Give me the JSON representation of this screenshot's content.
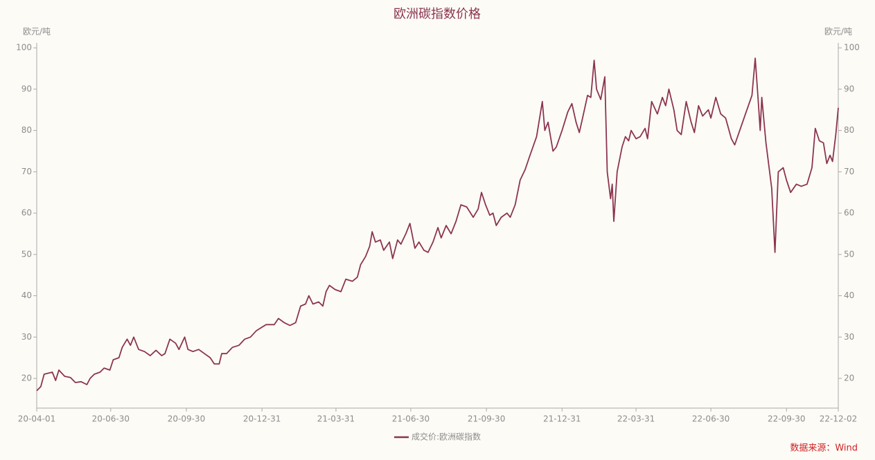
{
  "chart_data": {
    "type": "line",
    "title": "欧洲碳指数价格",
    "ylabel": "欧元/吨",
    "y2label": "欧元/吨",
    "source": "数据来源：Wind",
    "xlim": [
      "2020-04-01",
      "2022-12-02"
    ],
    "xticks": [
      {
        "value": "2020-04-01",
        "label": "20-04-01"
      },
      {
        "value": "2020-06-30",
        "label": "20-06-30"
      },
      {
        "value": "2020-09-30",
        "label": "20-09-30"
      },
      {
        "value": "2020-12-31",
        "label": "20-12-31"
      },
      {
        "value": "2021-03-31",
        "label": "21-03-31"
      },
      {
        "value": "2021-06-30",
        "label": "21-06-30"
      },
      {
        "value": "2021-09-30",
        "label": "21-09-30"
      },
      {
        "value": "2021-12-31",
        "label": "21-12-31"
      },
      {
        "value": "2022-03-31",
        "label": "22-03-31"
      },
      {
        "value": "2022-06-30",
        "label": "22-06-30"
      },
      {
        "value": "2022-09-30",
        "label": "22-09-30"
      },
      {
        "value": "2022-12-02",
        "label": "22-12-02"
      }
    ],
    "ylim": [
      12.8,
      101.2
    ],
    "yticks": [
      20,
      30,
      40,
      50,
      60,
      70,
      80,
      90,
      100
    ],
    "y2lim": [
      12.8,
      101.2
    ],
    "y2ticks": [
      20,
      30,
      40,
      50,
      60,
      70,
      80,
      90,
      100
    ],
    "x": [
      "2020-04-01",
      "2020-04-06",
      "2020-04-10",
      "2020-04-20",
      "2020-04-24",
      "2020-04-28",
      "2020-05-05",
      "2020-05-12",
      "2020-05-18",
      "2020-05-25",
      "2020-06-01",
      "2020-06-05",
      "2020-06-10",
      "2020-06-17",
      "2020-06-22",
      "2020-06-29",
      "2020-07-03",
      "2020-07-10",
      "2020-07-14",
      "2020-07-20",
      "2020-07-24",
      "2020-07-28",
      "2020-08-03",
      "2020-08-10",
      "2020-08-17",
      "2020-08-24",
      "2020-08-31",
      "2020-09-04",
      "2020-09-10",
      "2020-09-17",
      "2020-09-21",
      "2020-09-28",
      "2020-10-02",
      "2020-10-08",
      "2020-10-15",
      "2020-10-22",
      "2020-10-29",
      "2020-11-03",
      "2020-11-09",
      "2020-11-12",
      "2020-11-18",
      "2020-11-25",
      "2020-12-03",
      "2020-12-10",
      "2020-12-17",
      "2020-12-24",
      "2021-01-05",
      "2021-01-15",
      "2021-01-20",
      "2021-01-27",
      "2021-02-03",
      "2021-02-10",
      "2021-02-16",
      "2021-02-22",
      "2021-02-26",
      "2021-03-03",
      "2021-03-10",
      "2021-03-15",
      "2021-03-19",
      "2021-03-23",
      "2021-03-30",
      "2021-04-06",
      "2021-04-12",
      "2021-04-20",
      "2021-04-26",
      "2021-04-30",
      "2021-05-06",
      "2021-05-11",
      "2021-05-14",
      "2021-05-18",
      "2021-05-24",
      "2021-05-28",
      "2021-06-04",
      "2021-06-08",
      "2021-06-14",
      "2021-06-18",
      "2021-06-24",
      "2021-06-29",
      "2021-07-05",
      "2021-07-10",
      "2021-07-16",
      "2021-07-21",
      "2021-07-27",
      "2021-08-02",
      "2021-08-06",
      "2021-08-12",
      "2021-08-18",
      "2021-08-24",
      "2021-08-30",
      "2021-09-06",
      "2021-09-14",
      "2021-09-20",
      "2021-09-24",
      "2021-09-29",
      "2021-10-04",
      "2021-10-08",
      "2021-10-12",
      "2021-10-18",
      "2021-10-25",
      "2021-10-29",
      "2021-11-04",
      "2021-11-10",
      "2021-11-16",
      "2021-11-22",
      "2021-11-30",
      "2021-12-07",
      "2021-12-10",
      "2021-12-14",
      "2021-12-20",
      "2021-12-24",
      "2021-12-31",
      "2022-01-07",
      "2022-01-12",
      "2022-01-17",
      "2022-01-21",
      "2022-01-25",
      "2022-01-31",
      "2022-02-04",
      "2022-02-08",
      "2022-02-11",
      "2022-02-16",
      "2022-02-21",
      "2022-02-24",
      "2022-02-28",
      "2022-03-02",
      "2022-03-04",
      "2022-03-08",
      "2022-03-14",
      "2022-03-18",
      "2022-03-22",
      "2022-03-25",
      "2022-03-31",
      "2022-04-05",
      "2022-04-11",
      "2022-04-14",
      "2022-04-19",
      "2022-04-26",
      "2022-05-02",
      "2022-05-06",
      "2022-05-10",
      "2022-05-16",
      "2022-05-20",
      "2022-05-25",
      "2022-05-31",
      "2022-06-06",
      "2022-06-10",
      "2022-06-15",
      "2022-06-20",
      "2022-06-27",
      "2022-06-30",
      "2022-07-06",
      "2022-07-12",
      "2022-07-18",
      "2022-07-25",
      "2022-07-29",
      "2022-08-05",
      "2022-08-12",
      "2022-08-19",
      "2022-08-23",
      "2022-08-26",
      "2022-08-29",
      "2022-08-31",
      "2022-09-05",
      "2022-09-12",
      "2022-09-16",
      "2022-09-20",
      "2022-09-26",
      "2022-09-30",
      "2022-10-05",
      "2022-10-12",
      "2022-10-18",
      "2022-10-25",
      "2022-10-31",
      "2022-11-04",
      "2022-11-09",
      "2022-11-14",
      "2022-11-18",
      "2022-11-22",
      "2022-11-25",
      "2022-11-29",
      "2022-12-02"
    ],
    "series": [
      {
        "name": "成交价:欧洲碳指数",
        "color": "#8b3450",
        "values": [
          17,
          18,
          21,
          21.5,
          19.5,
          22,
          20.5,
          20.2,
          19,
          19.2,
          18.5,
          20,
          21,
          21.5,
          22.5,
          22,
          24.5,
          25,
          27.5,
          29.5,
          28,
          30,
          27,
          26.5,
          25.5,
          26.8,
          25.5,
          26,
          29.5,
          28.5,
          27,
          30,
          27,
          26.5,
          27,
          26,
          25,
          23.5,
          23.5,
          26,
          26,
          27.5,
          28,
          29.5,
          30,
          31.5,
          33,
          33,
          34.5,
          33.5,
          32.8,
          33.5,
          37.5,
          38,
          40,
          38,
          38.5,
          37.5,
          41,
          42.5,
          41.5,
          41,
          44,
          43.5,
          44.5,
          47.5,
          49.5,
          52,
          55.5,
          53,
          53.5,
          51,
          53,
          49,
          53.5,
          52.5,
          55,
          57.5,
          51.5,
          53,
          51,
          50.5,
          53,
          56.5,
          54,
          57,
          55,
          58,
          62,
          61.5,
          59,
          61,
          65,
          62,
          59.5,
          60,
          57,
          59,
          60,
          59,
          62,
          68,
          70.5,
          74,
          78.5,
          87,
          80,
          82,
          75,
          76,
          80,
          84.5,
          86.5,
          82,
          79.5,
          83,
          88.5,
          88,
          97,
          90,
          87.5,
          93,
          70,
          63.5,
          67,
          58,
          70,
          76,
          78.5,
          77.5,
          80,
          78,
          78.5,
          80.5,
          78,
          87,
          84,
          88,
          86,
          90,
          85,
          80,
          79,
          87,
          82,
          79.5,
          86,
          83.5,
          85,
          83,
          88,
          84,
          83,
          78,
          76.5,
          80.5,
          84.5,
          88.5,
          97.5,
          89,
          80,
          88,
          77,
          66,
          50.5,
          70,
          71,
          68,
          65,
          67,
          66.5,
          67,
          71,
          80.5,
          77.5,
          77,
          72,
          74,
          72.5,
          79,
          85.5
        ]
      }
    ]
  }
}
